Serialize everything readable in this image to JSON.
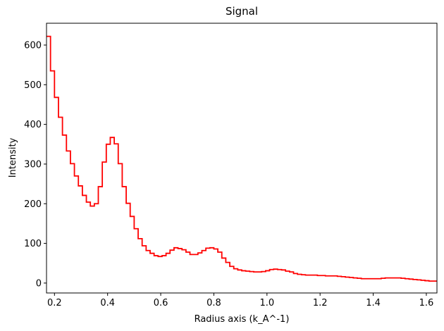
{
  "chart_data": {
    "type": "line",
    "drawstyle": "steps",
    "title": "Signal",
    "xlabel": "Radius axis (k_A^-1)",
    "ylabel": "Intensity",
    "xlim": [
      0.17,
      1.64
    ],
    "ylim": [
      -25,
      655
    ],
    "xticks": [
      0.2,
      0.4,
      0.6,
      0.8,
      1.0,
      1.2,
      1.4,
      1.6
    ],
    "xtick_labels": [
      "0.2",
      "0.4",
      "0.6",
      "0.8",
      "1.0",
      "1.2",
      "1.4",
      "1.6"
    ],
    "yticks": [
      0,
      100,
      200,
      300,
      400,
      500,
      600
    ],
    "ytick_labels": [
      "0",
      "100",
      "200",
      "300",
      "400",
      "500",
      "600"
    ],
    "grid": false,
    "series": [
      {
        "color": "#ff0000",
        "x": [
          0.17,
          0.185,
          0.2,
          0.215,
          0.23,
          0.245,
          0.26,
          0.275,
          0.29,
          0.305,
          0.32,
          0.335,
          0.35,
          0.365,
          0.38,
          0.395,
          0.41,
          0.425,
          0.44,
          0.455,
          0.47,
          0.485,
          0.5,
          0.515,
          0.53,
          0.545,
          0.56,
          0.575,
          0.59,
          0.605,
          0.62,
          0.635,
          0.65,
          0.665,
          0.68,
          0.695,
          0.71,
          0.725,
          0.74,
          0.755,
          0.77,
          0.785,
          0.8,
          0.815,
          0.83,
          0.845,
          0.86,
          0.875,
          0.89,
          0.905,
          0.92,
          0.935,
          0.95,
          0.965,
          0.98,
          0.995,
          1.01,
          1.025,
          1.04,
          1.055,
          1.07,
          1.085,
          1.1,
          1.115,
          1.13,
          1.145,
          1.16,
          1.175,
          1.19,
          1.205,
          1.22,
          1.235,
          1.25,
          1.265,
          1.28,
          1.295,
          1.31,
          1.325,
          1.34,
          1.355,
          1.37,
          1.385,
          1.4,
          1.415,
          1.43,
          1.445,
          1.46,
          1.475,
          1.49,
          1.505,
          1.52,
          1.535,
          1.55,
          1.565,
          1.58,
          1.595,
          1.61,
          1.625
        ],
        "y": [
          622,
          535,
          468,
          418,
          373,
          333,
          301,
          270,
          245,
          221,
          204,
          194,
          200,
          243,
          305,
          350,
          367,
          351,
          301,
          243,
          201,
          168,
          137,
          112,
          94,
          82,
          75,
          69,
          67,
          69,
          75,
          83,
          89,
          87,
          84,
          78,
          72,
          72,
          76,
          82,
          88,
          89,
          86,
          78,
          63,
          52,
          42,
          36,
          33,
          31,
          30,
          29,
          28,
          28,
          29,
          31,
          34,
          35,
          34,
          33,
          30,
          28,
          24,
          22,
          21,
          20,
          20,
          20,
          19,
          19,
          18,
          18,
          18,
          17,
          16,
          15,
          14,
          13,
          12,
          11,
          11,
          11,
          11,
          11,
          12,
          13,
          13,
          13,
          13,
          12,
          11,
          10,
          9,
          8,
          7,
          6,
          5,
          5
        ]
      }
    ]
  }
}
